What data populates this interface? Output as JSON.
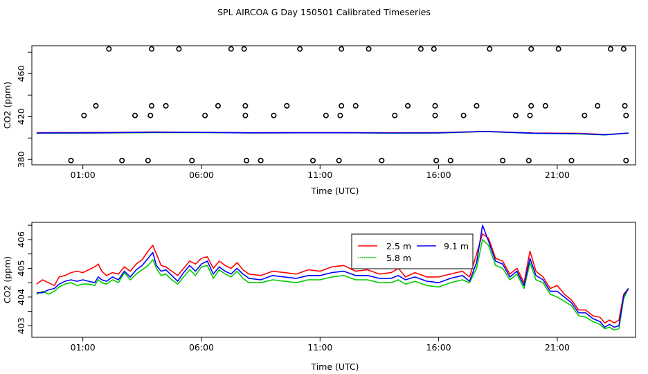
{
  "title": "SPL AIRCOA G  Day 150501  Calibrated Timeseries",
  "chart_data": [
    {
      "type": "scatter",
      "xlabel": "Time (UTC)",
      "ylabel": "CO2 (ppm)",
      "x_ticks": [
        {
          "v": 1,
          "label": "01:00"
        },
        {
          "v": 6,
          "label": "06:00"
        },
        {
          "v": 11,
          "label": "11:00"
        },
        {
          "v": 16,
          "label": "16:00"
        },
        {
          "v": 21,
          "label": "21:00"
        }
      ],
      "y_ticks": [
        380,
        420,
        460
      ],
      "xlim": [
        -1.15,
        24.3
      ],
      "ylim": [
        375,
        486
      ],
      "grid": false,
      "calibration_points": [
        {
          "x": 0.5,
          "y": 379
        },
        {
          "x": 1.05,
          "y": 421
        },
        {
          "x": 1.55,
          "y": 430
        },
        {
          "x": 2.1,
          "y": 483
        },
        {
          "x": 2.65,
          "y": 379
        },
        {
          "x": 3.2,
          "y": 421
        },
        {
          "x": 3.75,
          "y": 379
        },
        {
          "x": 3.85,
          "y": 421
        },
        {
          "x": 3.9,
          "y": 430
        },
        {
          "x": 3.9,
          "y": 483
        },
        {
          "x": 4.5,
          "y": 430
        },
        {
          "x": 5.05,
          "y": 483
        },
        {
          "x": 5.6,
          "y": 379
        },
        {
          "x": 6.15,
          "y": 421
        },
        {
          "x": 6.7,
          "y": 430
        },
        {
          "x": 7.25,
          "y": 483
        },
        {
          "x": 7.8,
          "y": 483
        },
        {
          "x": 7.85,
          "y": 430
        },
        {
          "x": 7.85,
          "y": 421
        },
        {
          "x": 7.9,
          "y": 379
        },
        {
          "x": 8.5,
          "y": 379
        },
        {
          "x": 9.05,
          "y": 421
        },
        {
          "x": 9.6,
          "y": 430
        },
        {
          "x": 10.15,
          "y": 483
        },
        {
          "x": 10.7,
          "y": 379
        },
        {
          "x": 11.25,
          "y": 421
        },
        {
          "x": 11.8,
          "y": 379
        },
        {
          "x": 11.85,
          "y": 421
        },
        {
          "x": 11.9,
          "y": 430
        },
        {
          "x": 11.9,
          "y": 483
        },
        {
          "x": 12.5,
          "y": 430
        },
        {
          "x": 13.05,
          "y": 483
        },
        {
          "x": 13.6,
          "y": 379
        },
        {
          "x": 14.15,
          "y": 421
        },
        {
          "x": 14.7,
          "y": 430
        },
        {
          "x": 15.25,
          "y": 483
        },
        {
          "x": 15.8,
          "y": 483
        },
        {
          "x": 15.85,
          "y": 430
        },
        {
          "x": 15.85,
          "y": 421
        },
        {
          "x": 15.9,
          "y": 379
        },
        {
          "x": 16.5,
          "y": 379
        },
        {
          "x": 17.05,
          "y": 421
        },
        {
          "x": 17.6,
          "y": 430
        },
        {
          "x": 18.15,
          "y": 483
        },
        {
          "x": 18.7,
          "y": 379
        },
        {
          "x": 19.25,
          "y": 421
        },
        {
          "x": 19.8,
          "y": 379
        },
        {
          "x": 19.85,
          "y": 421
        },
        {
          "x": 19.9,
          "y": 430
        },
        {
          "x": 19.9,
          "y": 483
        },
        {
          "x": 20.5,
          "y": 430
        },
        {
          "x": 21.05,
          "y": 483
        },
        {
          "x": 21.6,
          "y": 379
        },
        {
          "x": 22.15,
          "y": 421
        },
        {
          "x": 22.7,
          "y": 430
        },
        {
          "x": 23.25,
          "y": 483
        },
        {
          "x": 23.8,
          "y": 483
        },
        {
          "x": 23.85,
          "y": 430
        },
        {
          "x": 23.9,
          "y": 421
        },
        {
          "x": 23.9,
          "y": 379
        }
      ],
      "flat_series": [
        {
          "color": "#ff0000",
          "x": [
            -0.95,
            2.0,
            4.0,
            6.0,
            8.0,
            10.0,
            12.0,
            14.0,
            16.0,
            18.0,
            20.0,
            22.0,
            23.0,
            24.0
          ],
          "y": [
            405.0,
            405.2,
            405.6,
            405.3,
            405.0,
            405.1,
            405.1,
            404.9,
            405.1,
            406.2,
            404.7,
            404.3,
            403.2,
            404.5
          ]
        },
        {
          "color": "#00cc00",
          "x": [
            -0.95,
            2.0,
            4.0,
            6.0,
            8.0,
            10.0,
            12.0,
            14.0,
            16.0,
            18.0,
            20.0,
            22.0,
            23.0,
            24.0
          ],
          "y": [
            404.4,
            404.7,
            405.1,
            405.0,
            404.7,
            404.8,
            404.8,
            404.5,
            404.6,
            406.0,
            404.3,
            403.8,
            402.9,
            404.5
          ]
        },
        {
          "color": "#0000ff",
          "x": [
            -0.95,
            2.0,
            4.0,
            6.0,
            8.0,
            10.0,
            12.0,
            14.0,
            16.0,
            18.0,
            20.0,
            22.0,
            23.0,
            24.0
          ],
          "y": [
            404.6,
            404.9,
            405.4,
            405.2,
            404.8,
            404.9,
            404.9,
            404.7,
            404.8,
            406.1,
            404.5,
            404.0,
            403.0,
            404.6
          ]
        }
      ]
    },
    {
      "type": "line",
      "xlabel": "Time (UTC)",
      "ylabel": "CO2 (ppm)",
      "x_ticks": [
        {
          "v": 1,
          "label": "01:00"
        },
        {
          "v": 6,
          "label": "06:00"
        },
        {
          "v": 11,
          "label": "11:00"
        },
        {
          "v": 16,
          "label": "16:00"
        },
        {
          "v": 21,
          "label": "21:00"
        }
      ],
      "y_ticks": [
        403,
        404,
        405,
        406
      ],
      "xlim": [
        -1.15,
        24.3
      ],
      "ylim": [
        402.6,
        406.6
      ],
      "grid": false,
      "legend_position": "top-right",
      "series": [
        {
          "name": "2.5 m",
          "color": "#ff0000",
          "x": [
            -0.95,
            -0.7,
            -0.45,
            -0.2,
            0.0,
            0.25,
            0.5,
            0.75,
            1.0,
            1.25,
            1.5,
            1.65,
            1.8,
            2.0,
            2.25,
            2.5,
            2.75,
            3.0,
            3.25,
            3.5,
            3.75,
            3.95,
            4.1,
            4.3,
            4.5,
            4.75,
            5.0,
            5.25,
            5.5,
            5.75,
            6.0,
            6.25,
            6.5,
            6.75,
            7.0,
            7.25,
            7.5,
            7.75,
            8.0,
            8.5,
            9.0,
            9.5,
            10.0,
            10.5,
            11.0,
            11.5,
            12.0,
            12.5,
            13.0,
            13.5,
            14.0,
            14.3,
            14.6,
            15.0,
            15.5,
            16.0,
            16.5,
            17.0,
            17.3,
            17.6,
            17.85,
            18.1,
            18.4,
            18.7,
            19.0,
            19.3,
            19.6,
            19.85,
            20.1,
            20.4,
            20.7,
            21.0,
            21.3,
            21.6,
            21.9,
            22.2,
            22.5,
            22.8,
            23.0,
            23.2,
            23.4,
            23.6,
            23.8,
            24.0
          ],
          "y": [
            404.45,
            404.6,
            404.5,
            404.4,
            404.7,
            404.75,
            404.85,
            404.9,
            404.85,
            404.95,
            405.05,
            405.15,
            404.9,
            404.75,
            404.85,
            404.8,
            405.05,
            404.9,
            405.15,
            405.3,
            405.6,
            405.8,
            405.5,
            405.1,
            405.05,
            404.9,
            404.75,
            405.0,
            405.25,
            405.15,
            405.35,
            405.4,
            405.0,
            405.25,
            405.1,
            405.0,
            405.2,
            404.95,
            404.8,
            404.75,
            404.9,
            404.85,
            404.8,
            404.95,
            404.9,
            405.05,
            405.1,
            404.9,
            404.95,
            404.8,
            404.85,
            405.0,
            404.7,
            404.85,
            404.7,
            404.7,
            404.8,
            404.9,
            404.7,
            405.5,
            406.2,
            406.05,
            405.35,
            405.25,
            404.8,
            405.0,
            404.5,
            405.6,
            404.9,
            404.7,
            404.3,
            404.4,
            404.1,
            403.9,
            403.55,
            403.55,
            403.35,
            403.3,
            403.1,
            403.2,
            403.1,
            403.2,
            404.1,
            404.3
          ]
        },
        {
          "name": "5.8 m",
          "color": "#00cc00",
          "x": [
            -0.95,
            -0.7,
            -0.45,
            -0.2,
            0.0,
            0.25,
            0.5,
            0.75,
            1.0,
            1.25,
            1.5,
            1.65,
            1.8,
            2.0,
            2.25,
            2.5,
            2.75,
            3.0,
            3.25,
            3.5,
            3.75,
            3.95,
            4.1,
            4.3,
            4.5,
            4.75,
            5.0,
            5.25,
            5.5,
            5.75,
            6.0,
            6.25,
            6.5,
            6.75,
            7.0,
            7.25,
            7.5,
            7.75,
            8.0,
            8.5,
            9.0,
            9.5,
            10.0,
            10.5,
            11.0,
            11.5,
            12.0,
            12.5,
            13.0,
            13.5,
            14.0,
            14.3,
            14.6,
            15.0,
            15.5,
            16.0,
            16.5,
            17.0,
            17.3,
            17.6,
            17.85,
            18.1,
            18.4,
            18.7,
            19.0,
            19.3,
            19.6,
            19.85,
            20.1,
            20.4,
            20.7,
            21.0,
            21.3,
            21.6,
            21.9,
            22.2,
            22.5,
            22.8,
            23.0,
            23.2,
            23.4,
            23.6,
            23.8,
            24.0
          ],
          "y": [
            404.1,
            404.2,
            404.1,
            404.2,
            404.35,
            404.45,
            404.5,
            404.4,
            404.45,
            404.45,
            404.4,
            404.6,
            404.5,
            404.45,
            404.6,
            404.5,
            404.85,
            404.6,
            404.8,
            404.95,
            405.1,
            405.3,
            405.0,
            404.75,
            404.8,
            404.6,
            404.45,
            404.7,
            404.95,
            404.75,
            405.05,
            405.1,
            404.65,
            404.95,
            404.8,
            404.7,
            404.9,
            404.65,
            404.5,
            404.5,
            404.6,
            404.55,
            404.5,
            404.6,
            404.6,
            404.7,
            404.75,
            404.6,
            404.6,
            404.5,
            404.5,
            404.6,
            404.45,
            404.55,
            404.4,
            404.35,
            404.5,
            404.6,
            404.5,
            405.0,
            406.0,
            405.8,
            405.1,
            405.0,
            404.6,
            404.8,
            404.3,
            405.2,
            404.6,
            404.5,
            404.1,
            404.0,
            403.85,
            403.7,
            403.35,
            403.3,
            403.15,
            403.05,
            402.9,
            402.95,
            402.85,
            402.9,
            403.95,
            404.3
          ]
        },
        {
          "name": "9.1 m",
          "color": "#0000ff",
          "x": [
            -0.95,
            -0.7,
            -0.45,
            -0.2,
            0.0,
            0.25,
            0.5,
            0.75,
            1.0,
            1.25,
            1.5,
            1.65,
            1.8,
            2.0,
            2.25,
            2.5,
            2.75,
            3.0,
            3.25,
            3.5,
            3.75,
            3.95,
            4.1,
            4.3,
            4.5,
            4.75,
            5.0,
            5.25,
            5.5,
            5.75,
            6.0,
            6.25,
            6.5,
            6.75,
            7.0,
            7.25,
            7.5,
            7.75,
            8.0,
            8.5,
            9.0,
            9.5,
            10.0,
            10.5,
            11.0,
            11.5,
            12.0,
            12.5,
            13.0,
            13.5,
            14.0,
            14.3,
            14.6,
            15.0,
            15.5,
            16.0,
            16.5,
            17.0,
            17.3,
            17.6,
            17.85,
            18.1,
            18.4,
            18.7,
            19.0,
            19.3,
            19.6,
            19.85,
            20.1,
            20.4,
            20.7,
            21.0,
            21.3,
            21.6,
            21.9,
            22.2,
            22.5,
            22.8,
            23.0,
            23.2,
            23.4,
            23.6,
            23.8,
            24.0
          ],
          "y": [
            404.15,
            404.15,
            404.25,
            404.3,
            404.45,
            404.55,
            404.6,
            404.55,
            404.6,
            404.55,
            404.5,
            404.7,
            404.6,
            404.55,
            404.7,
            404.6,
            404.9,
            404.7,
            404.95,
            405.1,
            405.35,
            405.55,
            405.1,
            404.9,
            404.95,
            404.75,
            404.55,
            404.85,
            405.1,
            404.9,
            405.15,
            405.25,
            404.8,
            405.05,
            404.9,
            404.8,
            405.0,
            404.8,
            404.65,
            404.6,
            404.75,
            404.7,
            404.65,
            404.75,
            404.75,
            404.85,
            404.9,
            404.75,
            404.75,
            404.65,
            404.65,
            404.75,
            404.6,
            404.7,
            404.55,
            404.5,
            404.65,
            404.75,
            404.55,
            405.2,
            406.5,
            405.95,
            405.25,
            405.15,
            404.7,
            404.9,
            404.4,
            405.35,
            404.75,
            404.6,
            404.2,
            404.2,
            404.0,
            403.8,
            403.45,
            403.45,
            403.25,
            403.15,
            402.95,
            403.05,
            402.95,
            403.0,
            404.05,
            404.3
          ]
        }
      ]
    }
  ]
}
